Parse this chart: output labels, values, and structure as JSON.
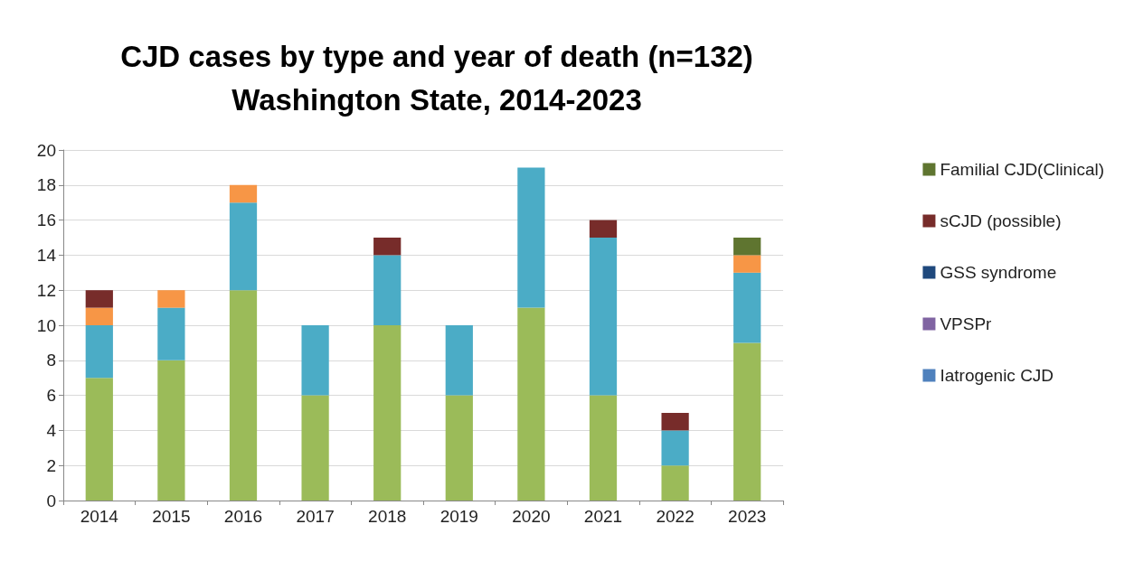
{
  "chart_data": {
    "type": "bar",
    "title": "CJD cases by type and year of death (n=132)\nWashington State, 2014-2023",
    "categories": [
      "2014",
      "2015",
      "2016",
      "2017",
      "2018",
      "2019",
      "2020",
      "2021",
      "2022",
      "2023"
    ],
    "stacked": true,
    "ylim": [
      0,
      20
    ],
    "yticks": [
      0,
      2,
      4,
      6,
      8,
      10,
      12,
      14,
      16,
      18,
      20
    ],
    "grid": "y",
    "legend": "right",
    "series": [
      {
        "color": "#9bbb59",
        "values": [
          7,
          8,
          12,
          6,
          10,
          6,
          11,
          6,
          2,
          9
        ]
      },
      {
        "color": "#4bacc6",
        "values": [
          3,
          3,
          5,
          4,
          4,
          4,
          8,
          9,
          2,
          4
        ]
      },
      {
        "color": "#f79646",
        "values": [
          1,
          1,
          1,
          0,
          0,
          0,
          0,
          0,
          0,
          1
        ]
      },
      {
        "name": "Iatrogenic CJD",
        "color": "#4f81bd",
        "values": [
          0,
          0,
          0,
          0,
          0,
          0,
          0,
          0,
          0,
          0
        ]
      },
      {
        "name": "VPSPr",
        "color": "#8064a2",
        "values": [
          0,
          0,
          0,
          0,
          0,
          0,
          0,
          0,
          0,
          0
        ]
      },
      {
        "name": "GSS syndrome",
        "color": "#1f497d",
        "values": [
          0,
          0,
          0,
          0,
          0,
          0,
          0,
          0,
          0,
          0
        ]
      },
      {
        "name": "sCJD (possible)",
        "color": "#772c2a",
        "values": [
          1,
          0,
          0,
          0,
          1,
          0,
          0,
          1,
          1,
          0
        ]
      },
      {
        "name": "Familial CJD(Clinical)",
        "color": "#5f7530",
        "values": [
          0,
          0,
          0,
          0,
          0,
          0,
          0,
          0,
          0,
          1
        ]
      }
    ]
  }
}
